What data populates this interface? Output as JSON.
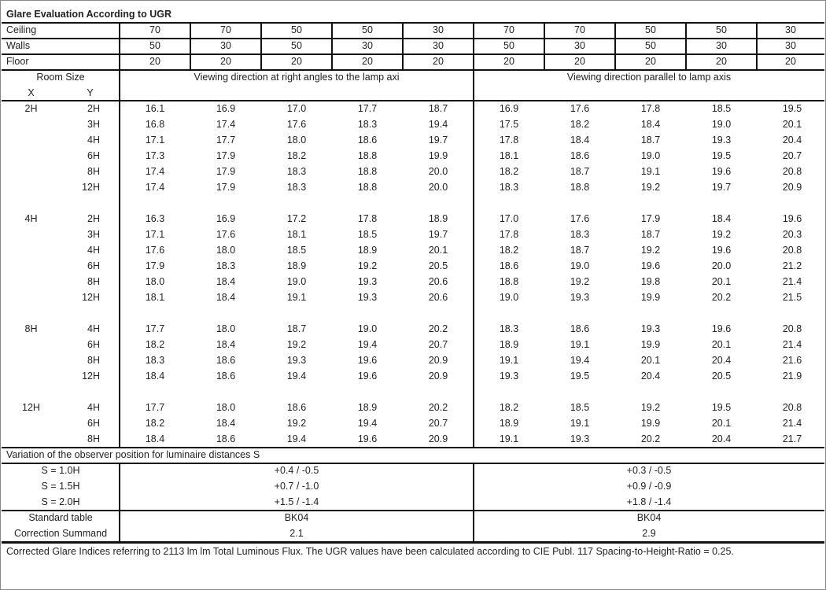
{
  "title": "Glare Evaluation According to UGR",
  "reflectance": [
    {
      "label": "Ceiling",
      "values": [
        "70",
        "70",
        "50",
        "50",
        "30",
        "70",
        "70",
        "50",
        "50",
        "30"
      ]
    },
    {
      "label": "Walls",
      "values": [
        "50",
        "30",
        "50",
        "30",
        "30",
        "50",
        "30",
        "50",
        "30",
        "30"
      ]
    },
    {
      "label": "Floor",
      "values": [
        "20",
        "20",
        "20",
        "20",
        "20",
        "20",
        "20",
        "20",
        "20",
        "20"
      ]
    }
  ],
  "room_size_label": "Room Size",
  "x_label": "X",
  "y_label": "Y",
  "direction_headers": [
    "Viewing direction at right angles to the lamp axi",
    "Viewing direction parallel to lamp axis"
  ],
  "groups": [
    {
      "x": "2H",
      "rows": [
        {
          "y": "2H",
          "values": [
            "16.1",
            "16.9",
            "17.0",
            "17.7",
            "18.7",
            "16.9",
            "17.6",
            "17.8",
            "18.5",
            "19.5"
          ]
        },
        {
          "y": "3H",
          "values": [
            "16.8",
            "17.4",
            "17.6",
            "18.3",
            "19.4",
            "17.5",
            "18.2",
            "18.4",
            "19.0",
            "20.1"
          ]
        },
        {
          "y": "4H",
          "values": [
            "17.1",
            "17.7",
            "18.0",
            "18.6",
            "19.7",
            "17.8",
            "18.4",
            "18.7",
            "19.3",
            "20.4"
          ]
        },
        {
          "y": "6H",
          "values": [
            "17.3",
            "17.9",
            "18.2",
            "18.8",
            "19.9",
            "18.1",
            "18.6",
            "19.0",
            "19.5",
            "20.7"
          ]
        },
        {
          "y": "8H",
          "values": [
            "17.4",
            "17.9",
            "18.3",
            "18.8",
            "20.0",
            "18.2",
            "18.7",
            "19.1",
            "19.6",
            "20.8"
          ]
        },
        {
          "y": "12H",
          "values": [
            "17.4",
            "17.9",
            "18.3",
            "18.8",
            "20.0",
            "18.3",
            "18.8",
            "19.2",
            "19.7",
            "20.9"
          ]
        }
      ]
    },
    {
      "x": "4H",
      "rows": [
        {
          "y": "2H",
          "values": [
            "16.3",
            "16.9",
            "17.2",
            "17.8",
            "18.9",
            "17.0",
            "17.6",
            "17.9",
            "18.4",
            "19.6"
          ]
        },
        {
          "y": "3H",
          "values": [
            "17.1",
            "17.6",
            "18.1",
            "18.5",
            "19.7",
            "17.8",
            "18.3",
            "18.7",
            "19.2",
            "20.3"
          ]
        },
        {
          "y": "4H",
          "values": [
            "17.6",
            "18.0",
            "18.5",
            "18.9",
            "20.1",
            "18.2",
            "18.7",
            "19.2",
            "19.6",
            "20.8"
          ]
        },
        {
          "y": "6H",
          "values": [
            "17.9",
            "18.3",
            "18.9",
            "19.2",
            "20.5",
            "18.6",
            "19.0",
            "19.6",
            "20.0",
            "21.2"
          ]
        },
        {
          "y": "8H",
          "values": [
            "18.0",
            "18.4",
            "19.0",
            "19.3",
            "20.6",
            "18.8",
            "19.2",
            "19.8",
            "20.1",
            "21.4"
          ]
        },
        {
          "y": "12H",
          "values": [
            "18.1",
            "18.4",
            "19.1",
            "19.3",
            "20.6",
            "19.0",
            "19.3",
            "19.9",
            "20.2",
            "21.5"
          ]
        }
      ]
    },
    {
      "x": "8H",
      "rows": [
        {
          "y": "4H",
          "values": [
            "17.7",
            "18.0",
            "18.7",
            "19.0",
            "20.2",
            "18.3",
            "18.6",
            "19.3",
            "19.6",
            "20.8"
          ]
        },
        {
          "y": "6H",
          "values": [
            "18.2",
            "18.4",
            "19.2",
            "19.4",
            "20.7",
            "18.9",
            "19.1",
            "19.9",
            "20.1",
            "21.4"
          ]
        },
        {
          "y": "8H",
          "values": [
            "18.3",
            "18.6",
            "19.3",
            "19.6",
            "20.9",
            "19.1",
            "19.4",
            "20.1",
            "20.4",
            "21.6"
          ]
        },
        {
          "y": "12H",
          "values": [
            "18.4",
            "18.6",
            "19.4",
            "19.6",
            "20.9",
            "19.3",
            "19.5",
            "20.4",
            "20.5",
            "21.9"
          ]
        }
      ]
    },
    {
      "x": "12H",
      "rows": [
        {
          "y": "4H",
          "values": [
            "17.7",
            "18.0",
            "18.6",
            "18.9",
            "20.2",
            "18.2",
            "18.5",
            "19.2",
            "19.5",
            "20.8"
          ]
        },
        {
          "y": "6H",
          "values": [
            "18.2",
            "18.4",
            "19.2",
            "19.4",
            "20.7",
            "18.9",
            "19.1",
            "19.9",
            "20.1",
            "21.4"
          ]
        },
        {
          "y": "8H",
          "values": [
            "18.4",
            "18.6",
            "19.4",
            "19.6",
            "20.9",
            "19.1",
            "19.3",
            "20.2",
            "20.4",
            "21.7"
          ]
        }
      ]
    }
  ],
  "variation": {
    "label": "Variation of the observer position for luminaire distances S",
    "rows": [
      {
        "s": "S = 1.0H",
        "perp": "+0.4 / -0.5",
        "para": "+0.3 / -0.5"
      },
      {
        "s": "S = 1.5H",
        "perp": "+0.7 / -1.0",
        "para": "+0.9 / -0.9"
      },
      {
        "s": "S = 2.0H",
        "perp": "+1.5 / -1.4",
        "para": "+1.8 / -1.4"
      }
    ]
  },
  "standard_table": {
    "label": "Standard table",
    "perp": "BK04",
    "para": "BK04"
  },
  "correction": {
    "label": "Correction Summand",
    "perp": "2.1",
    "para": "2.9"
  },
  "footnote": "Corrected Glare Indices referring to 2113 lm lm Total Luminous Flux. The UGR values have been calculated according to CIE Publ. 117    Spacing-to-Height-Ratio = 0.25."
}
